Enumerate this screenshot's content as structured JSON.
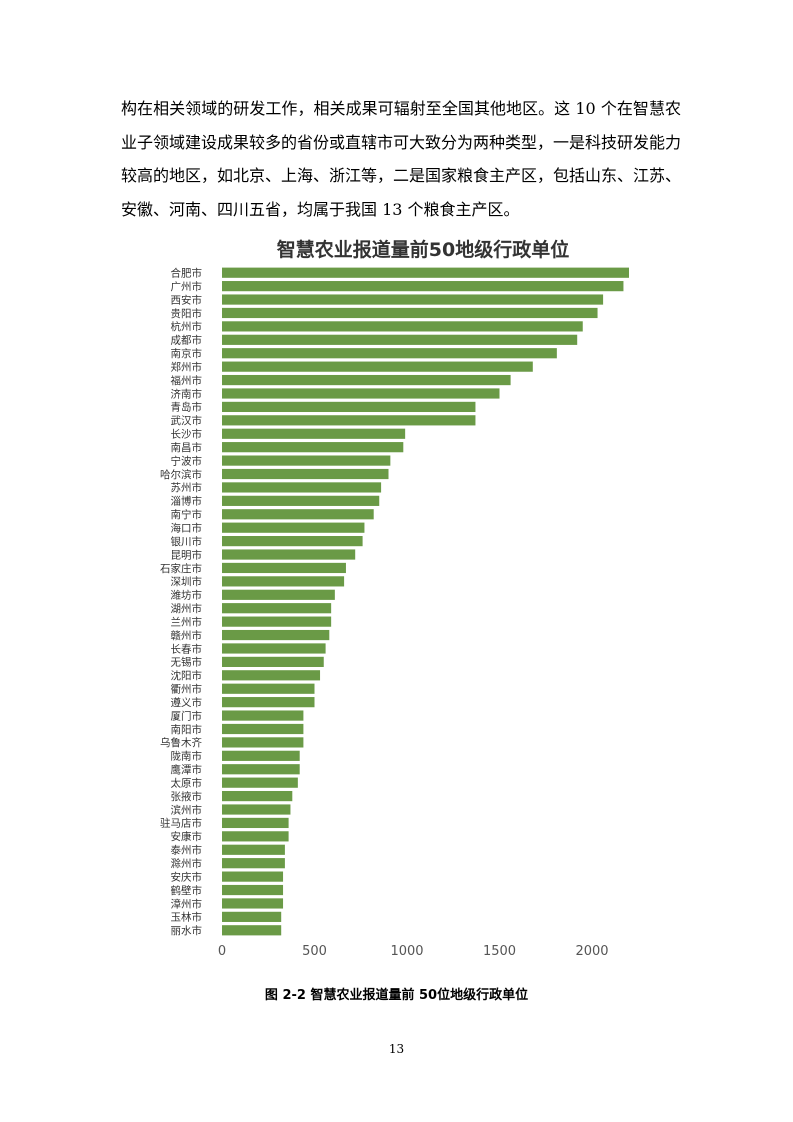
{
  "paragraph_lines": [
    "构在相关领域的研发工作，相关成果可辐射至全国其他地区。这 10 个在智慧农",
    "业子领域建设成果较多的省份或直辖市可大致分为两种类型，一是科技研发能力",
    "较高的地区，如北京、上海、浙江等，二是国家粮食主产区，包括山东、江苏、",
    "安徽、河南、四川五省，均属于我国 13 个粮食主产区。"
  ],
  "chart_data": {
    "type": "bar",
    "orientation": "horizontal",
    "title": "智慧农业报道量前50地级行政单位",
    "xlabel": "",
    "ylabel": "",
    "xlim": [
      0,
      2200
    ],
    "xticks": [
      0,
      500,
      1000,
      1500,
      2000
    ],
    "bar_color": "#6a9a46",
    "grid": false,
    "categories": [
      "合肥市",
      "广州市",
      "西安市",
      "贵阳市",
      "杭州市",
      "成都市",
      "南京市",
      "郑州市",
      "福州市",
      "济南市",
      "青岛市",
      "武汉市",
      "长沙市",
      "南昌市",
      "宁波市",
      "哈尔滨市",
      "苏州市",
      "淄博市",
      "南宁市",
      "海口市",
      "银川市",
      "昆明市",
      "石家庄市",
      "深圳市",
      "潍坊市",
      "湖州市",
      "兰州市",
      "赣州市",
      "长春市",
      "无锡市",
      "沈阳市",
      "衢州市",
      "遵义市",
      "厦门市",
      "南阳市",
      "乌鲁木齐",
      "陇南市",
      "鹰潭市",
      "太原市",
      "张掖市",
      "滨州市",
      "驻马店市",
      "安康市",
      "泰州市",
      "滁州市",
      "安庆市",
      "鹤壁市",
      "漳州市",
      "玉林市",
      "丽水市"
    ],
    "values": [
      2200,
      2170,
      2060,
      2030,
      1950,
      1920,
      1810,
      1680,
      1560,
      1500,
      1370,
      1370,
      990,
      980,
      910,
      900,
      860,
      850,
      820,
      770,
      760,
      720,
      670,
      660,
      610,
      590,
      590,
      580,
      560,
      550,
      530,
      500,
      500,
      440,
      440,
      440,
      420,
      420,
      410,
      380,
      370,
      360,
      360,
      340,
      340,
      330,
      330,
      330,
      320,
      320
    ]
  },
  "caption": "图 2-2 智慧农业报道量前 50位地级行政单位",
  "page_number": "13"
}
